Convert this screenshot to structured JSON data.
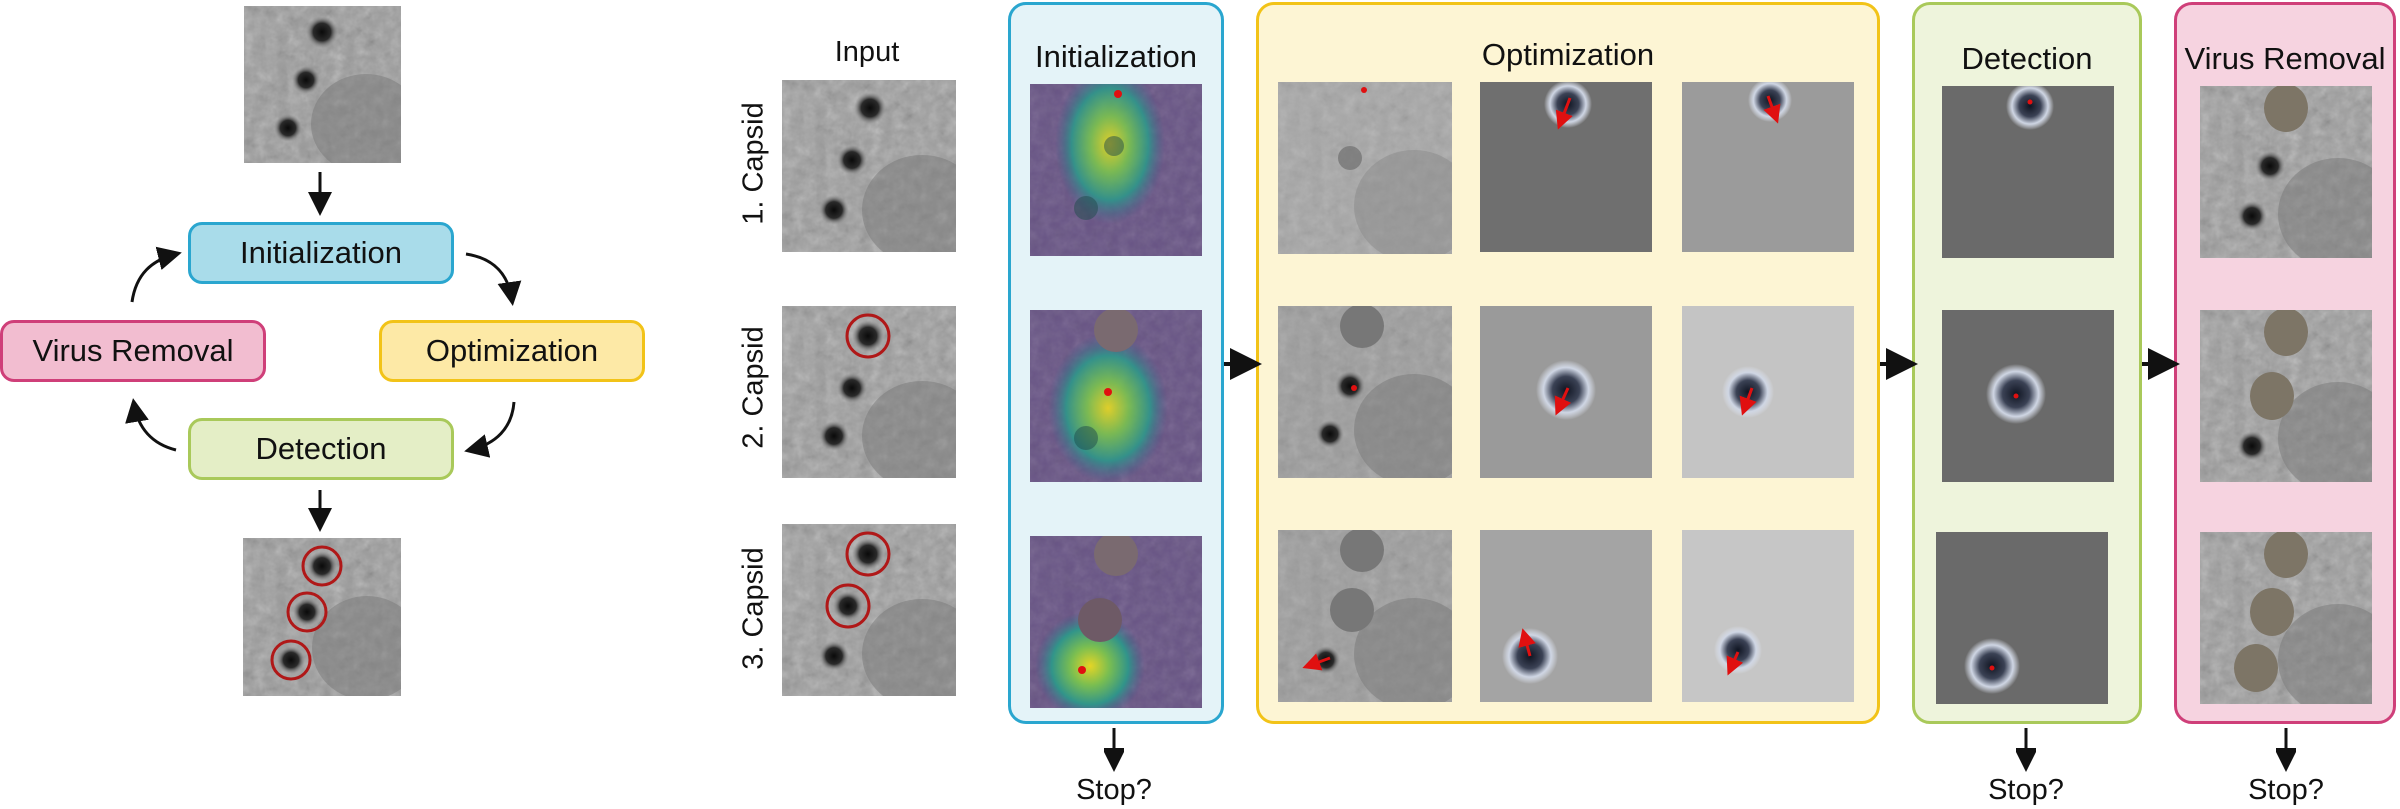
{
  "cycle": {
    "initialization": "Initialization",
    "optimization": "Optimization",
    "detection": "Detection",
    "removal": "Virus Removal"
  },
  "pipeline": {
    "input_title": "Input",
    "init_title": "Initialization",
    "opt_title": "Optimization",
    "det_title": "Detection",
    "rem_title": "Virus Removal",
    "rows": [
      "1. Capsid",
      "2. Capsid",
      "3. Capsid"
    ],
    "stop_label": "Stop?"
  },
  "colors": {
    "init_fill": "#a9dcea",
    "init_border": "#2aa6cf",
    "opt_fill": "#fde9a6",
    "opt_border": "#f2c318",
    "det_fill": "#e4eec6",
    "det_border": "#a9c95a",
    "rem_fill": "#f2bdd0",
    "rem_border": "#cf3f79",
    "circle": "#b01818",
    "arrow": "#e01010"
  }
}
